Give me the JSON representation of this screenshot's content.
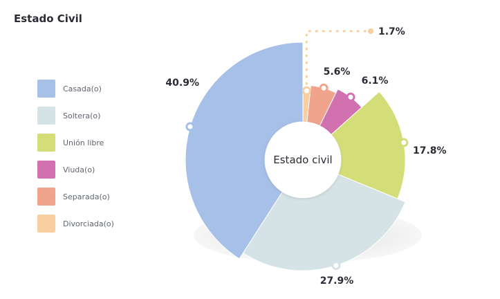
{
  "title": "Estado Civil",
  "colors": {
    "casada": "#a6c0e7",
    "soltera": "#d5e3e6",
    "union_libre": "#d4de78",
    "viuda": "#d271b0",
    "separada": "#f0a48c",
    "divorciada": "#f8cfa1"
  },
  "chart_data": {
    "type": "pie",
    "variant": "exploded-donut",
    "center_label": "Estado civil",
    "legend_position": "left",
    "slices": [
      {
        "key": "divorciada",
        "label": "Divorciada(o)",
        "value": 1.7,
        "display": "1.7%"
      },
      {
        "key": "separada",
        "label": "Separada(o)",
        "value": 5.6,
        "display": "5.6%"
      },
      {
        "key": "viuda",
        "label": "Viuda(o)",
        "value": 6.1,
        "display": "6.1%"
      },
      {
        "key": "union_libre",
        "label": "Unión libre",
        "value": 17.8,
        "display": "17.8%"
      },
      {
        "key": "soltera",
        "label": "Soltera(o)",
        "value": 27.9,
        "display": "27.9%"
      },
      {
        "key": "casada",
        "label": "Casada(o)",
        "value": 40.9,
        "display": "40.9%"
      }
    ],
    "legend_order": [
      "casada",
      "soltera",
      "union_libre",
      "viuda",
      "separada",
      "divorciada"
    ]
  }
}
